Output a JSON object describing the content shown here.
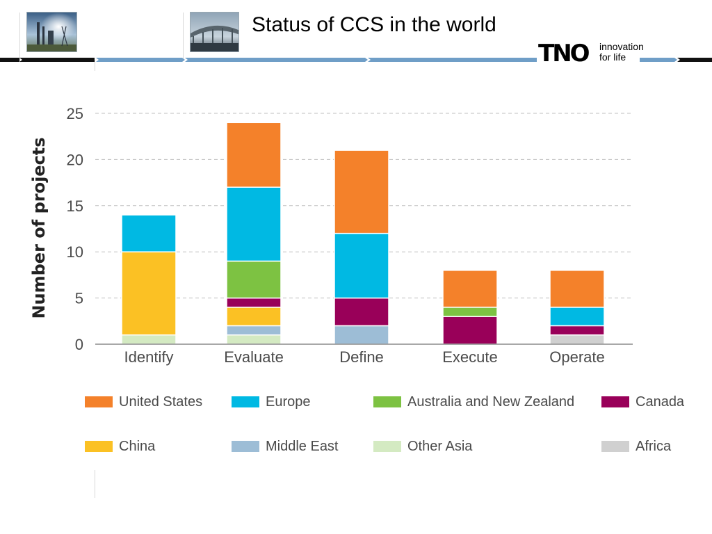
{
  "header": {
    "title": "Status of CCS in the world",
    "photos": [
      "industrial-chimneys-photo",
      "bridge-photo"
    ]
  },
  "logo": {
    "mark": "TNO",
    "tagline_line1": "innovation",
    "tagline_line2": "for life"
  },
  "colors": {
    "band_blue": "#6f9ec7",
    "band_black": "#111111",
    "grid": "#bfbfbf",
    "axis_text": "#4a4a4a"
  },
  "chart_data": {
    "type": "bar",
    "stacked": true,
    "title": "",
    "xlabel": "",
    "ylabel": "Number of projects",
    "ylim": [
      0,
      25
    ],
    "yticks": [
      0,
      5,
      10,
      15,
      20,
      25
    ],
    "grid": true,
    "categories": [
      "Identify",
      "Evaluate",
      "Define",
      "Execute",
      "Operate"
    ],
    "series": [
      {
        "name": "Africa",
        "color": "#d0d0d0",
        "values": [
          0,
          0,
          0,
          0,
          1
        ]
      },
      {
        "name": "Other Asia",
        "color": "#d4eac2",
        "values": [
          1,
          1,
          0,
          0,
          0
        ]
      },
      {
        "name": "Middle East",
        "color": "#9dbdd6",
        "values": [
          0,
          1,
          2,
          0,
          0
        ]
      },
      {
        "name": "China",
        "color": "#fbc124",
        "values": [
          9,
          2,
          0,
          0,
          0
        ]
      },
      {
        "name": "Canada",
        "color": "#990059",
        "values": [
          0,
          1,
          3,
          3,
          1
        ]
      },
      {
        "name": "Australia and New Zealand",
        "color": "#7dc242",
        "values": [
          0,
          4,
          0,
          1,
          0
        ]
      },
      {
        "name": "Europe",
        "color": "#00b9e3",
        "values": [
          4,
          8,
          7,
          0,
          2
        ]
      },
      {
        "name": "United States",
        "color": "#f4812a",
        "values": [
          0,
          7,
          9,
          4,
          4
        ]
      }
    ],
    "legend": {
      "placement": "bottom",
      "items": [
        {
          "label": "United States",
          "color": "#f4812a"
        },
        {
          "label": "Europe",
          "color": "#00b9e3"
        },
        {
          "label": "Australia and New Zealand",
          "color": "#7dc242"
        },
        {
          "label": "Canada",
          "color": "#990059"
        },
        {
          "label": "China",
          "color": "#fbc124"
        },
        {
          "label": "Middle East",
          "color": "#9dbdd6"
        },
        {
          "label": "Other Asia",
          "color": "#d4eac2"
        },
        {
          "label": "Africa",
          "color": "#d0d0d0"
        }
      ]
    }
  }
}
